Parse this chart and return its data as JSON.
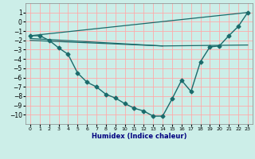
{
  "title": "",
  "xlabel": "Humidex (Indice chaleur)",
  "ylabel": "",
  "x_ticks": [
    0,
    1,
    2,
    3,
    4,
    5,
    6,
    7,
    8,
    9,
    10,
    11,
    12,
    13,
    14,
    15,
    16,
    17,
    18,
    19,
    20,
    21,
    22,
    23
  ],
  "ylim": [
    -11,
    2
  ],
  "xlim": [
    -0.5,
    23.5
  ],
  "yticks": [
    1,
    0,
    -1,
    -2,
    -3,
    -4,
    -5,
    -6,
    -7,
    -8,
    -9,
    -10
  ],
  "bg_color": "#cceee8",
  "grid_color": "#ffaaaa",
  "line_color": "#1a6b6b",
  "series_main": {
    "x": [
      0,
      1,
      2,
      3,
      4,
      5,
      6,
      7,
      8,
      9,
      10,
      11,
      12,
      13,
      14,
      15,
      16,
      17,
      18,
      19,
      20,
      21,
      22,
      23
    ],
    "y": [
      -1.5,
      -1.5,
      -2.0,
      -2.8,
      -3.5,
      -5.5,
      -6.5,
      -7.0,
      -7.8,
      -8.2,
      -8.8,
      -9.3,
      -9.6,
      -10.15,
      -10.15,
      -8.3,
      -6.3,
      -7.5,
      -4.3,
      -2.7,
      -2.6,
      -1.5,
      -0.5,
      1.0
    ]
  },
  "line1": {
    "x": [
      0,
      23
    ],
    "y": [
      -1.5,
      1.0
    ]
  },
  "line2": {
    "x": [
      0,
      14,
      23
    ],
    "y": [
      -1.8,
      -2.6,
      -2.5
    ]
  },
  "line3": {
    "x": [
      0,
      14
    ],
    "y": [
      -2.0,
      -2.6
    ]
  }
}
